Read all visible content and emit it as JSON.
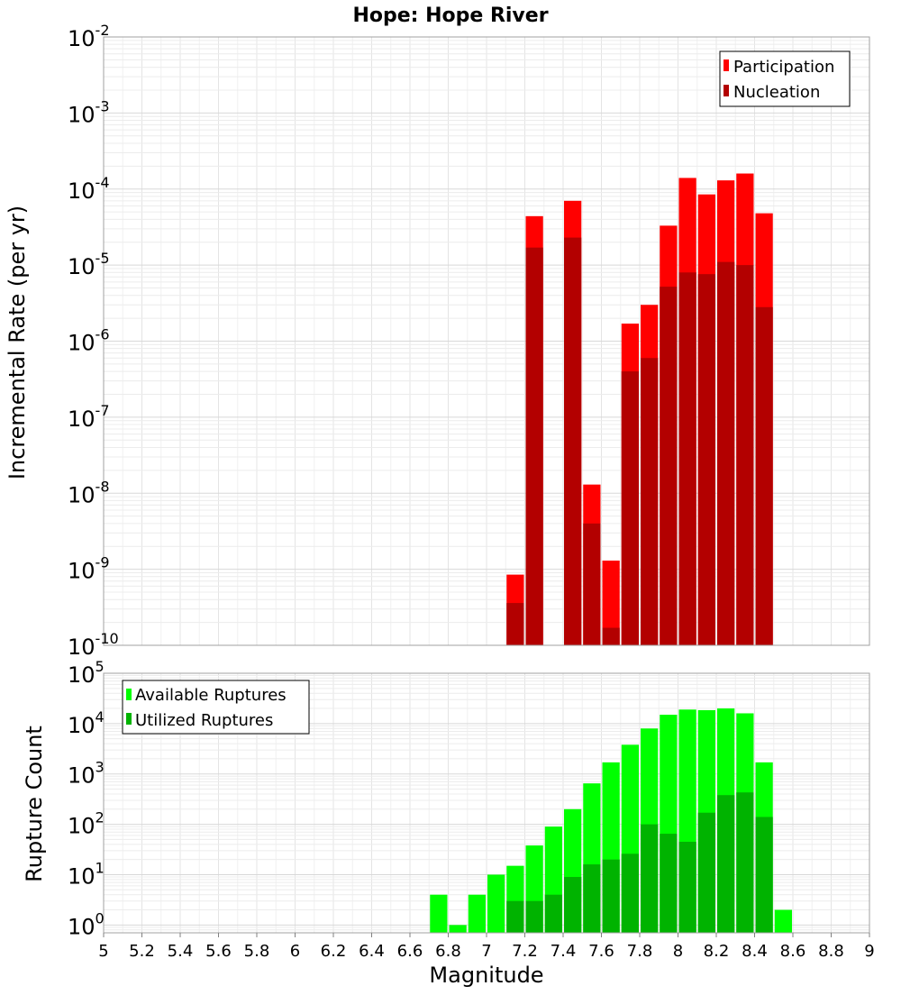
{
  "title": "Hope: Hope River",
  "xlabel": "Magnitude",
  "chart_data": [
    {
      "type": "bar",
      "name": "rate-chart",
      "ylabel": "Incremental Rate (per yr)",
      "yscale": "log",
      "ylim": [
        1e-10,
        0.01
      ],
      "xlim": [
        5,
        9
      ],
      "bin_width": 0.1,
      "legend_position": "top-right",
      "grid": true,
      "series": [
        {
          "name": "Participation",
          "color": "#ff0000",
          "x": [
            7.15,
            7.25,
            7.45,
            7.55,
            7.65,
            7.75,
            7.85,
            7.95,
            8.05,
            8.15,
            8.25,
            8.35,
            8.45
          ],
          "values": [
            8.5e-10,
            4.4e-05,
            7e-05,
            1.3e-08,
            1.3e-09,
            1.7e-06,
            3e-06,
            3.3e-05,
            0.00014,
            8.5e-05,
            0.00013,
            0.00016,
            4.8e-05
          ]
        },
        {
          "name": "Nucleation",
          "color": "#b30000",
          "x": [
            7.15,
            7.25,
            7.45,
            7.55,
            7.65,
            7.75,
            7.85,
            7.95,
            8.05,
            8.15,
            8.25,
            8.35,
            8.45
          ],
          "values": [
            3.6e-10,
            1.7e-05,
            2.3e-05,
            4e-09,
            1.7e-10,
            4e-07,
            6e-07,
            5.2e-06,
            8e-06,
            7.6e-06,
            1.1e-05,
            1e-05,
            2.8e-06
          ]
        }
      ]
    },
    {
      "type": "bar",
      "name": "count-chart",
      "ylabel": "Rupture Count",
      "yscale": "log",
      "ylim": [
        0.7,
        100000.0
      ],
      "xlim": [
        5,
        9
      ],
      "bin_width": 0.1,
      "legend_position": "top-left",
      "grid": true,
      "series": [
        {
          "name": "Available Ruptures",
          "color": "#00ff00",
          "x": [
            6.75,
            6.85,
            6.95,
            7.05,
            7.15,
            7.25,
            7.35,
            7.45,
            7.55,
            7.65,
            7.75,
            7.85,
            7.95,
            8.05,
            8.15,
            8.25,
            8.35,
            8.45,
            8.55
          ],
          "values": [
            4,
            1,
            4,
            10,
            15,
            38,
            90,
            200,
            650,
            1700,
            3800,
            8000,
            15000,
            19000,
            18500,
            20000,
            16000,
            1700,
            2
          ]
        },
        {
          "name": "Utilized Ruptures",
          "color": "#00b300",
          "x": [
            7.15,
            7.25,
            7.35,
            7.45,
            7.55,
            7.65,
            7.75,
            7.85,
            7.95,
            8.05,
            8.15,
            8.25,
            8.35,
            8.45
          ],
          "values": [
            3,
            3,
            4,
            9,
            16,
            20,
            26,
            100,
            65,
            45,
            170,
            380,
            430,
            140
          ]
        }
      ]
    }
  ],
  "x_ticks": [
    "5",
    "5.2",
    "5.4",
    "5.6",
    "5.8",
    "6",
    "6.2",
    "6.4",
    "6.6",
    "6.8",
    "7",
    "7.2",
    "7.4",
    "7.6",
    "7.8",
    "8",
    "8.2",
    "8.4",
    "8.6",
    "8.8",
    "9"
  ],
  "top_y_ticks": {
    "base": "10",
    "exponents": [
      "-2",
      "-3",
      "-4",
      "-5",
      "-6",
      "-7",
      "-8",
      "-9",
      "-10"
    ]
  },
  "bottom_y_ticks": {
    "base": "10",
    "exponents": [
      "5",
      "4",
      "3",
      "2",
      "1",
      "0"
    ]
  }
}
